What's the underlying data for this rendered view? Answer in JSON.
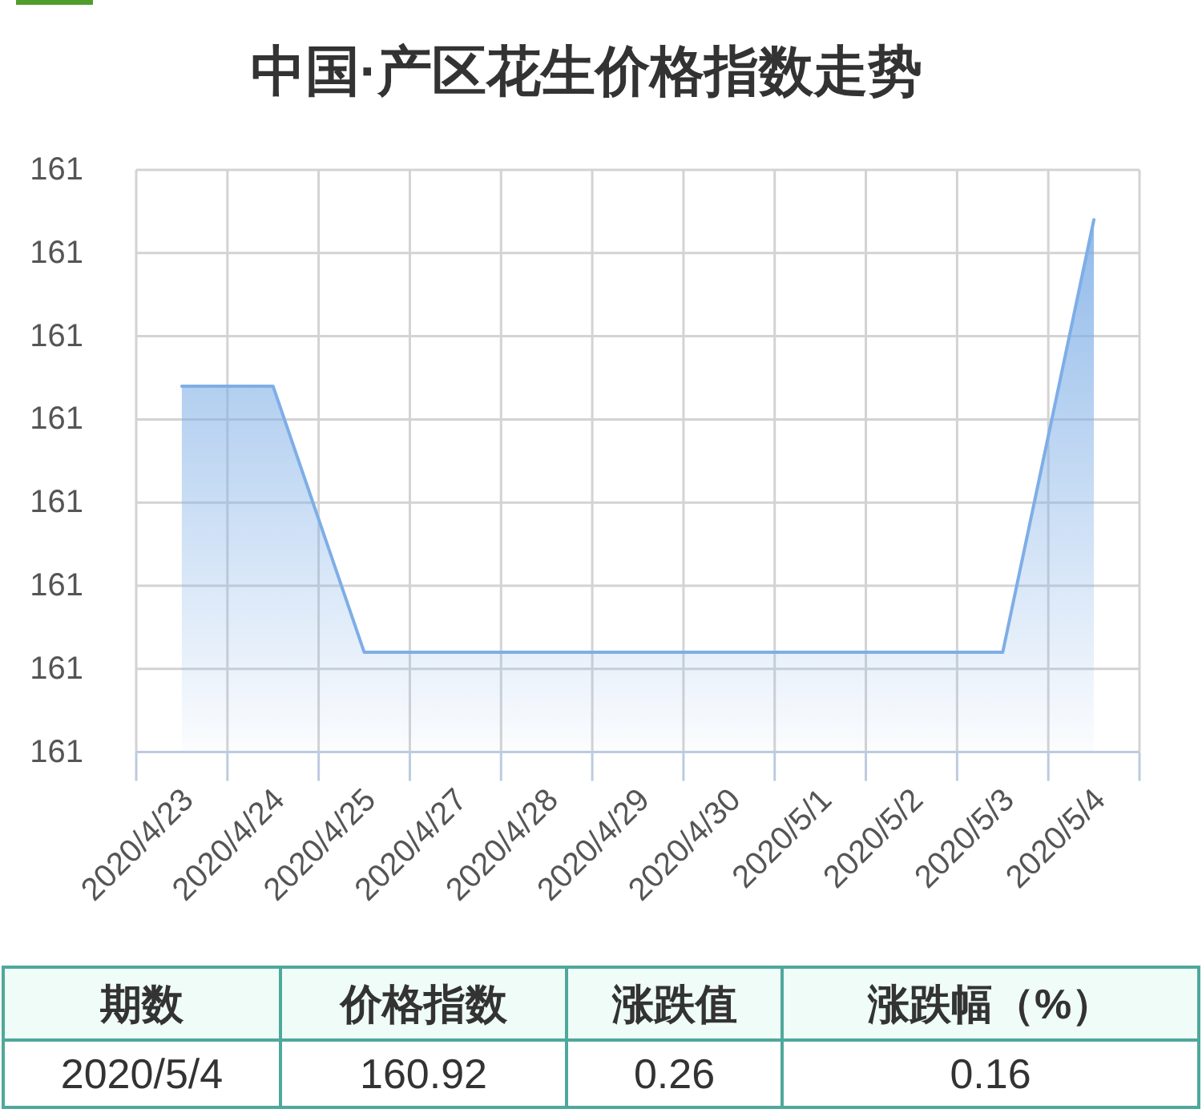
{
  "chart_data": [
    {
      "type": "area",
      "title": "中国·产区花生价格指数走势",
      "categories": [
        "2020/4/23",
        "2020/4/24",
        "2020/4/25",
        "2020/4/27",
        "2020/4/28",
        "2020/4/29",
        "2020/4/30",
        "2020/5/1",
        "2020/5/2",
        "2020/5/3",
        "2020/5/4"
      ],
      "values": [
        160.82,
        160.82,
        160.66,
        160.66,
        160.66,
        160.66,
        160.66,
        160.66,
        160.66,
        160.66,
        160.92
      ],
      "color": "#7eaee6",
      "ylim": [
        160.6,
        160.95
      ],
      "yticks": [
        {
          "value": 160.6,
          "label": "161"
        },
        {
          "value": 160.65,
          "label": "161"
        },
        {
          "value": 160.7,
          "label": "161"
        },
        {
          "value": 160.75,
          "label": "161"
        },
        {
          "value": 160.8,
          "label": "161"
        },
        {
          "value": 160.85,
          "label": "161"
        },
        {
          "value": 160.9,
          "label": "161"
        },
        {
          "value": 160.95,
          "label": "161"
        }
      ],
      "grid": true
    },
    {
      "type": "other",
      "categories": [
        "期数",
        "价格指数",
        "涨跌值",
        "涨跌幅（%）"
      ],
      "annotations": [
        "2020/5/4",
        "160.92",
        "0.26",
        "0.16"
      ]
    }
  ]
}
